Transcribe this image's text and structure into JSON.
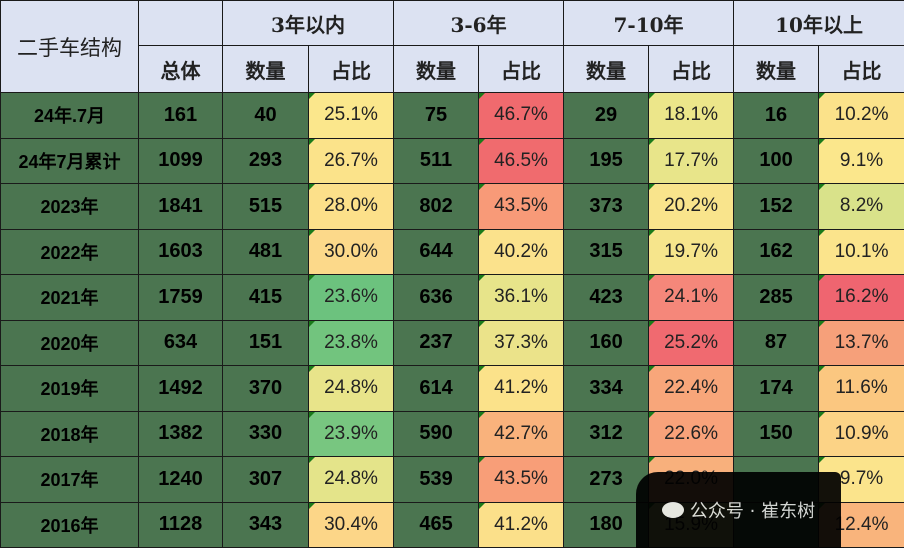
{
  "header": {
    "corner": "二手车结构",
    "groups": [
      "3年以内",
      "3-6年",
      "7-10年",
      "10年以上"
    ],
    "total": "总体",
    "count": "数量",
    "share": "占比"
  },
  "rows": [
    {
      "label": "24年.7月",
      "total": "161",
      "cells": [
        [
          "40",
          "25.1%",
          "#fbe78c"
        ],
        [
          "75",
          "46.7%",
          "#f06a6e"
        ],
        [
          "29",
          "18.1%",
          "#ece68a"
        ],
        [
          "16",
          "10.2%",
          "#fbe28a"
        ]
      ]
    },
    {
      "label": "24年7月累计",
      "total": "1099",
      "cells": [
        [
          "293",
          "26.7%",
          "#fbe38a"
        ],
        [
          "511",
          "46.5%",
          "#f06b6e"
        ],
        [
          "195",
          "17.7%",
          "#e8e58a"
        ],
        [
          "100",
          "9.1%",
          "#fbe78c"
        ]
      ]
    },
    {
      "label": "2023年",
      "total": "1841",
      "cells": [
        [
          "515",
          "28.0%",
          "#fce08a"
        ],
        [
          "802",
          "43.5%",
          "#f89a78"
        ],
        [
          "373",
          "20.2%",
          "#f9e48c"
        ],
        [
          "152",
          "8.2%",
          "#d9e28a"
        ]
      ]
    },
    {
      "label": "2022年",
      "total": "1603",
      "cells": [
        [
          "481",
          "30.0%",
          "#fcd98a"
        ],
        [
          "644",
          "40.2%",
          "#fbe28c"
        ],
        [
          "315",
          "19.7%",
          "#f6e58c"
        ],
        [
          "162",
          "10.1%",
          "#fbe48c"
        ]
      ]
    },
    {
      "label": "2021年",
      "total": "1759",
      "cells": [
        [
          "415",
          "23.6%",
          "#6cc27e"
        ],
        [
          "636",
          "36.1%",
          "#e7e48a"
        ],
        [
          "423",
          "24.1%",
          "#f5877a"
        ],
        [
          "285",
          "16.2%",
          "#ef6570"
        ]
      ]
    },
    {
      "label": "2020年",
      "total": "634",
      "cells": [
        [
          "151",
          "23.8%",
          "#72c47e"
        ],
        [
          "237",
          "37.3%",
          "#ebe38a"
        ],
        [
          "160",
          "25.2%",
          "#f06a70"
        ],
        [
          "87",
          "13.7%",
          "#f6a07a"
        ]
      ]
    },
    {
      "label": "2019年",
      "total": "1492",
      "cells": [
        [
          "370",
          "24.8%",
          "#e8e48a"
        ],
        [
          "614",
          "41.2%",
          "#fbe28a"
        ],
        [
          "334",
          "22.4%",
          "#f8a67a"
        ],
        [
          "174",
          "11.6%",
          "#fbc780"
        ]
      ]
    },
    {
      "label": "2018年",
      "total": "1382",
      "cells": [
        [
          "330",
          "23.9%",
          "#78c680"
        ],
        [
          "590",
          "42.7%",
          "#f9b27c"
        ],
        [
          "312",
          "22.6%",
          "#f8a27a"
        ],
        [
          "150",
          "10.9%",
          "#fcd386"
        ]
      ]
    },
    {
      "label": "2017年",
      "total": "1240",
      "cells": [
        [
          "307",
          "24.8%",
          "#e4e48a"
        ],
        [
          "539",
          "43.5%",
          "#f89e78"
        ],
        [
          "273",
          "22.0%",
          "#f8b07c"
        ],
        [
          "",
          "9.7%",
          "#fbe48c"
        ]
      ]
    },
    {
      "label": "2016年",
      "total": "1128",
      "cells": [
        [
          "343",
          "30.4%",
          "#fcd688"
        ],
        [
          "465",
          "41.2%",
          "#fbe08a"
        ],
        [
          "180",
          "15.9%",
          "#cfe08a"
        ],
        [
          "",
          "12.4%",
          "#f9b47c"
        ]
      ]
    }
  ],
  "watermark": "公众号 · 崔东树"
}
